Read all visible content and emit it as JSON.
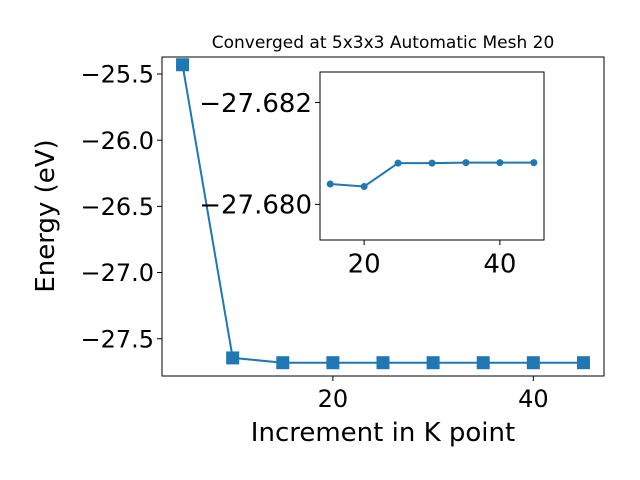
{
  "chart_data": [
    {
      "type": "line",
      "title": "Converged at 5x3x3 Automatic Mesh 20",
      "xlabel": "Increment in K point",
      "ylabel": "Energy (eV)",
      "xlim": [
        2.95,
        47.05
      ],
      "ylim": [
        -27.7815,
        -25.3715
      ],
      "x_ticks": [
        20,
        40
      ],
      "x_tick_labels": [
        "20",
        "40"
      ],
      "y_ticks": [
        -25.5,
        -26.0,
        -26.5,
        -27.0,
        -27.5
      ],
      "y_tick_labels": [
        "−25.5",
        "−26.0",
        "−26.5",
        "−27.0",
        "−27.5"
      ],
      "grid": false,
      "marker": "square",
      "color": "#1f77b4",
      "series": [
        {
          "x": [
            5,
            10,
            15,
            20,
            25,
            30,
            35,
            40,
            45
          ],
          "y": [
            -25.43,
            -27.645,
            -27.681,
            -27.681,
            -27.681,
            -27.681,
            -27.681,
            -27.681,
            -27.681
          ]
        }
      ]
    },
    {
      "type": "line",
      "inset": true,
      "xlim": [
        13.5,
        46.5
      ],
      "ylim": [
        -27.6793,
        -27.6826
      ],
      "x_ticks": [
        20,
        40
      ],
      "x_tick_labels": [
        "20",
        "40"
      ],
      "y_ticks": [
        -27.682,
        -27.68
      ],
      "y_tick_labels": [
        "−27.682",
        "−27.680"
      ],
      "grid": false,
      "marker": "circle",
      "color": "#1f77b4",
      "series": [
        {
          "x": [
            15,
            20,
            25,
            30,
            35,
            40,
            45
          ],
          "y": [
            -27.6804,
            -27.68035,
            -27.68081,
            -27.68081,
            -27.68082,
            -27.68082,
            -27.68082
          ]
        }
      ]
    }
  ]
}
